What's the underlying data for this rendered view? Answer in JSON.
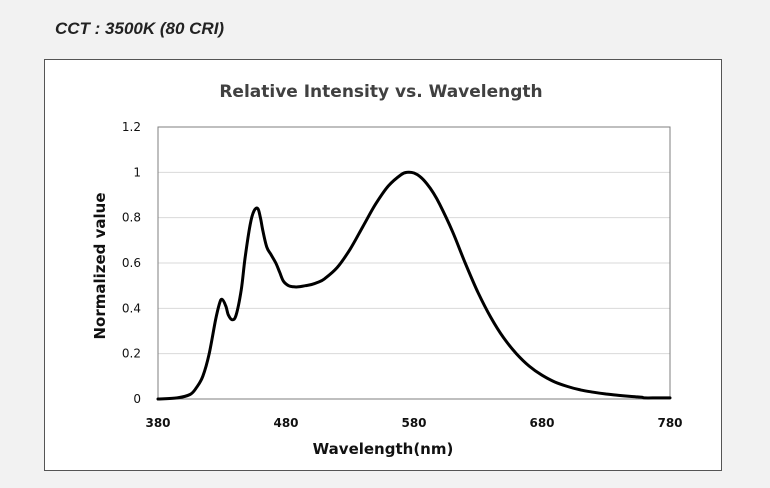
{
  "heading": "CCT : 3500K (80 CRI)",
  "chart_data": {
    "type": "line",
    "title": "Relative Intensity vs. Wavelength",
    "xlabel": "Wavelength(nm)",
    "ylabel": "Normalized value",
    "xlim": [
      380,
      780
    ],
    "ylim": [
      0,
      1.2
    ],
    "x_ticks": [
      380,
      480,
      580,
      680,
      780
    ],
    "y_ticks": [
      0,
      0.2,
      0.4,
      0.6,
      0.8,
      1,
      1.2
    ],
    "y_tick_labels": [
      "0",
      "0.2",
      "0.4",
      "0.6",
      "0.8",
      "1",
      "1.2"
    ],
    "grid": true,
    "legend": "none",
    "line_color": "#000000",
    "series": [
      {
        "x": [
          380,
          395,
          405,
          410,
          415,
          420,
          425,
          428,
          430,
          433,
          435,
          438,
          441,
          445,
          448,
          452,
          455,
          458,
          460,
          462,
          465,
          468,
          472,
          475,
          478,
          482,
          486,
          490,
          495,
          500,
          505,
          510,
          520,
          530,
          540,
          550,
          560,
          570,
          575,
          580,
          585,
          590,
          595,
          600,
          610,
          620,
          630,
          640,
          650,
          660,
          670,
          680,
          690,
          700,
          710,
          720,
          730,
          740,
          750,
          758,
          760,
          770,
          780
        ],
        "y": [
          0,
          0.005,
          0.02,
          0.05,
          0.1,
          0.2,
          0.35,
          0.42,
          0.44,
          0.41,
          0.37,
          0.35,
          0.37,
          0.48,
          0.62,
          0.77,
          0.83,
          0.84,
          0.8,
          0.74,
          0.67,
          0.64,
          0.6,
          0.56,
          0.52,
          0.5,
          0.495,
          0.495,
          0.5,
          0.505,
          0.515,
          0.53,
          0.58,
          0.66,
          0.76,
          0.86,
          0.94,
          0.99,
          1.0,
          0.997,
          0.98,
          0.95,
          0.91,
          0.86,
          0.74,
          0.6,
          0.47,
          0.36,
          0.27,
          0.2,
          0.145,
          0.105,
          0.075,
          0.055,
          0.04,
          0.03,
          0.022,
          0.016,
          0.011,
          0.008,
          0.005,
          0.005,
          0.005
        ]
      }
    ]
  }
}
